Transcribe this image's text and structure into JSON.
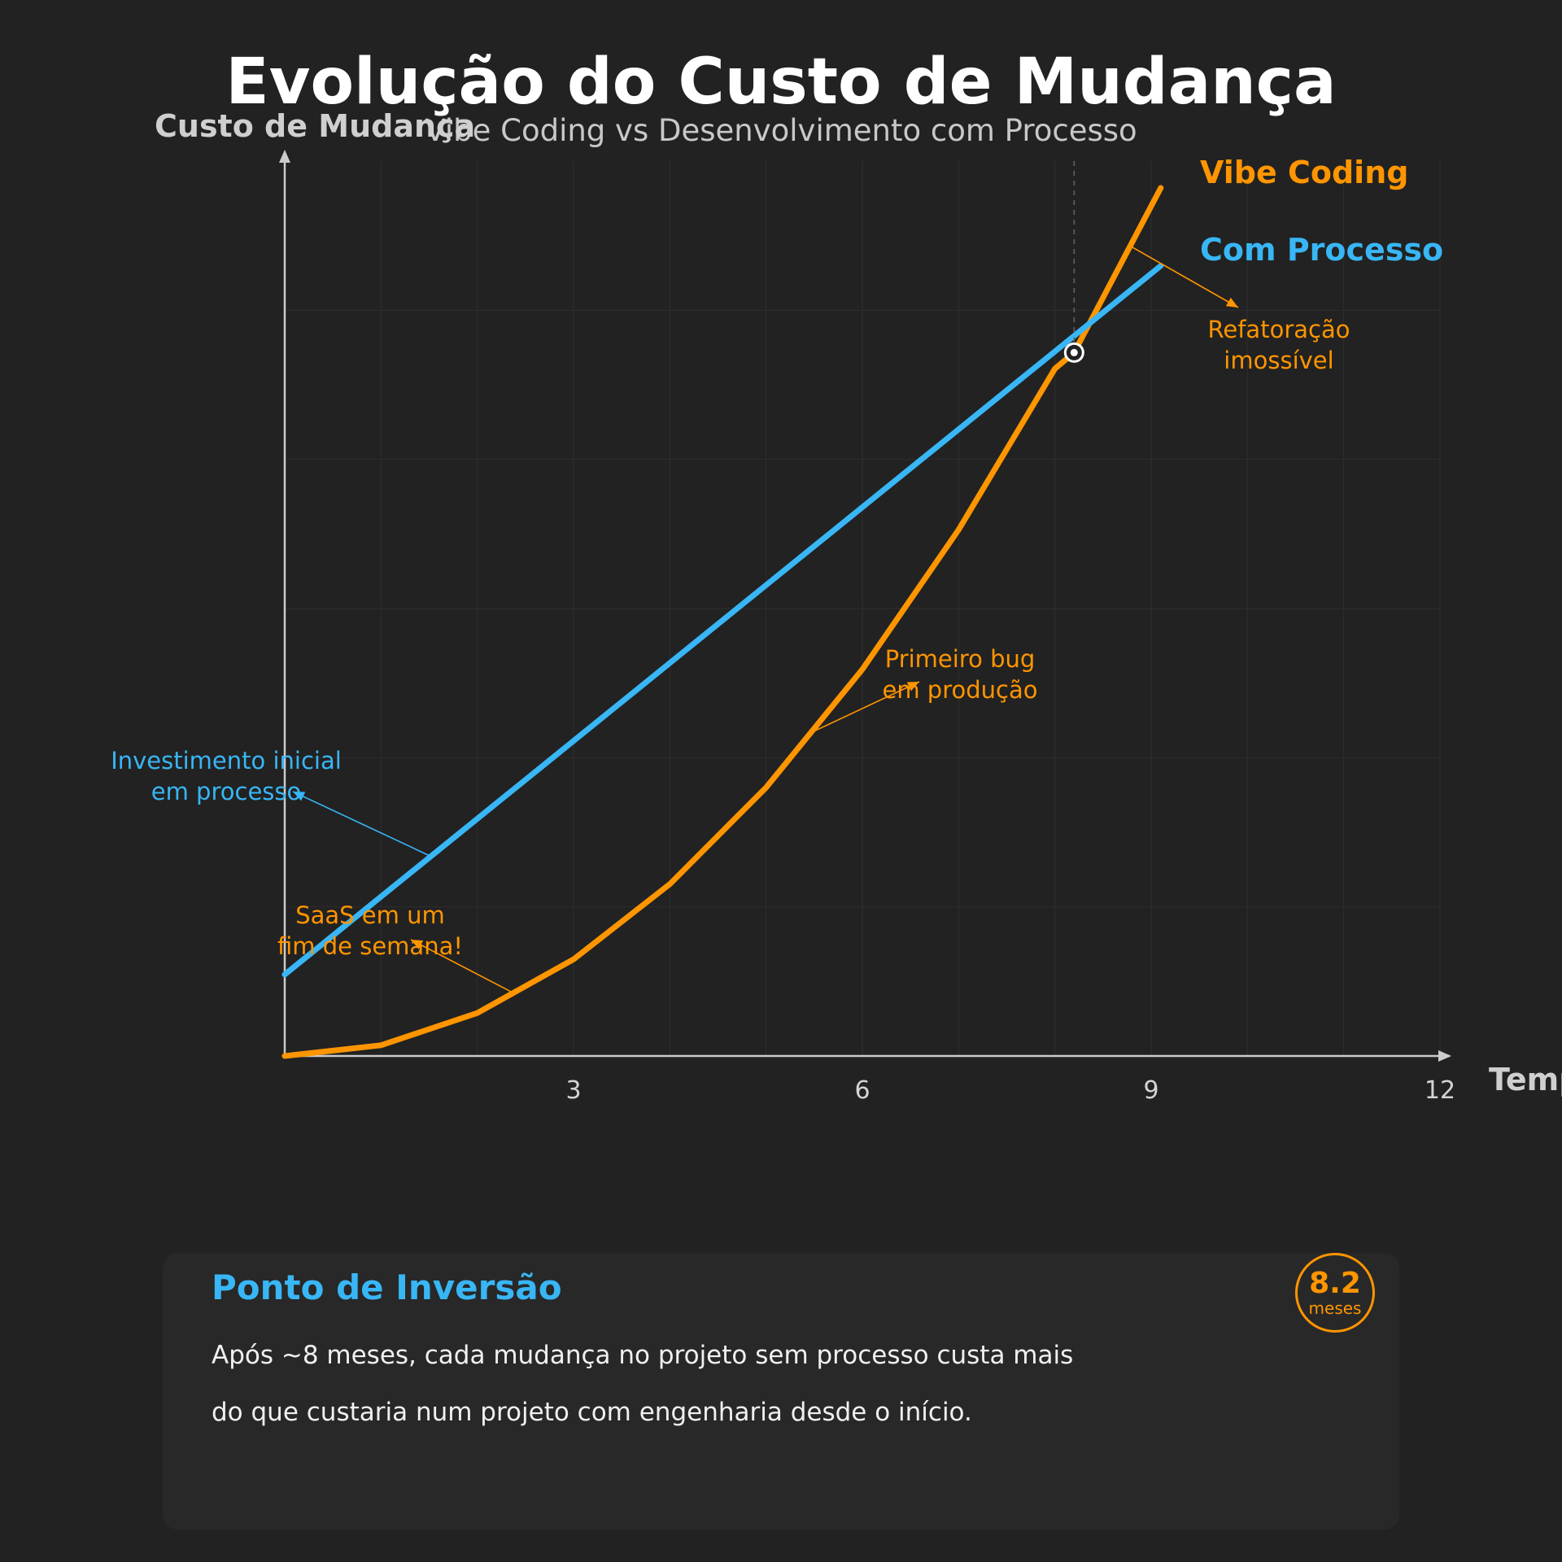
{
  "chart_data": {
    "type": "line",
    "title": "Evolução do Custo de Mudança",
    "subtitle": "Vibe Coding vs Desenvolvimento com Processo",
    "ylabel": "Custo de Mudança",
    "xlabel": "Tempo",
    "xlim": [
      0,
      12
    ],
    "ylim": [
      0,
      100
    ],
    "x_ticks": [
      3,
      6,
      9,
      12
    ],
    "grid": true,
    "series": [
      {
        "name": "Vibe Coding",
        "color": "#ff9500",
        "x": [
          0,
          1,
          2,
          3,
          4,
          5,
          6,
          7,
          8,
          8.2,
          9.1
        ],
        "values": [
          0,
          1.2,
          4.8,
          10.8,
          19.2,
          30,
          43.2,
          58.8,
          76.8,
          78.6,
          97
        ]
      },
      {
        "name": "Com Processo",
        "color": "#38b6f5",
        "x": [
          0,
          9.1
        ],
        "values": [
          9.1,
          88.3
        ]
      }
    ],
    "legend_placement": "right, at line ends",
    "crossover": {
      "x": 8.2,
      "y": 78.6,
      "guide": "dashed vertical line"
    },
    "annotations": [
      {
        "lines": [
          "Investimento inicial",
          "em processo"
        ],
        "color": "#38b6f5",
        "target": {
          "x": 1.5,
          "y": 22.4
        }
      },
      {
        "lines": [
          "SaaS em um",
          "fim de semana!"
        ],
        "color": "#ff9500",
        "target": {
          "x": 2.4,
          "y": 6.9
        }
      },
      {
        "lines": [
          "Primeiro bug",
          "em produção"
        ],
        "color": "#ff9500",
        "target": {
          "x": 5.5,
          "y": 36.3
        }
      },
      {
        "lines": [
          "Refatoração",
          "imossível"
        ],
        "color": "#ff9500",
        "target": {
          "x": 8.8,
          "y": 90.4
        }
      }
    ]
  },
  "insight": {
    "title": "Ponto de Inversão",
    "text": "Após ~8 meses, cada mudança no projeto sem processo custa mais do que custaria num projeto com engenharia desde o início.",
    "badge_value": "8.2",
    "badge_unit": "meses"
  },
  "colors": {
    "background": "#222222",
    "card": "#282828",
    "vibe": "#ff9500",
    "process": "#38b6f5",
    "axis": "#cccccc",
    "grid": "#2e2e2e"
  }
}
